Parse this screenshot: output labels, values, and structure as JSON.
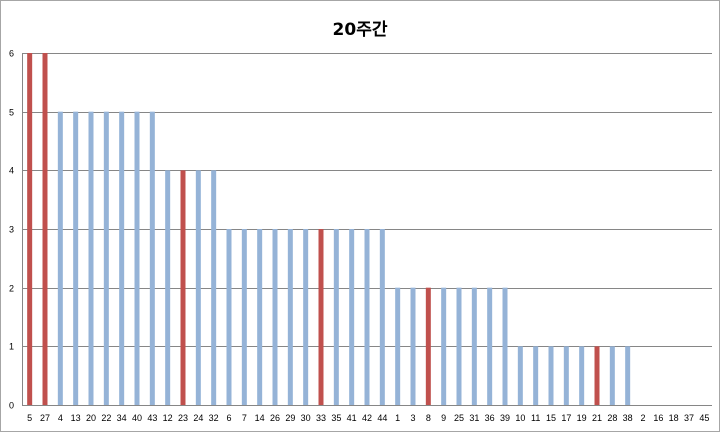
{
  "chart_data": {
    "type": "bar",
    "title": "20주간",
    "xlabel": "",
    "ylabel": "",
    "ylim": [
      0,
      6
    ],
    "ytick_step": 1,
    "grid": true,
    "legend": "none",
    "colors": {
      "normal": "#95b3d7",
      "highlight": "#c0504d",
      "grid": "#868686"
    },
    "categories": [
      "5",
      "27",
      "4",
      "13",
      "20",
      "22",
      "34",
      "40",
      "43",
      "12",
      "23",
      "24",
      "32",
      "6",
      "7",
      "14",
      "26",
      "29",
      "30",
      "33",
      "35",
      "41",
      "42",
      "44",
      "1",
      "3",
      "8",
      "9",
      "25",
      "31",
      "36",
      "39",
      "10",
      "11",
      "15",
      "17",
      "19",
      "21",
      "28",
      "38",
      "2",
      "16",
      "18",
      "37",
      "45"
    ],
    "values": [
      6,
      6,
      5,
      5,
      5,
      5,
      5,
      5,
      5,
      4,
      4,
      4,
      4,
      3,
      3,
      3,
      3,
      3,
      3,
      3,
      3,
      3,
      3,
      3,
      2,
      2,
      2,
      2,
      2,
      2,
      2,
      2,
      1,
      1,
      1,
      1,
      1,
      1,
      1,
      1,
      0,
      0,
      0,
      0,
      0
    ],
    "highlighted": [
      "5",
      "27",
      "23",
      "33",
      "8",
      "21"
    ]
  }
}
